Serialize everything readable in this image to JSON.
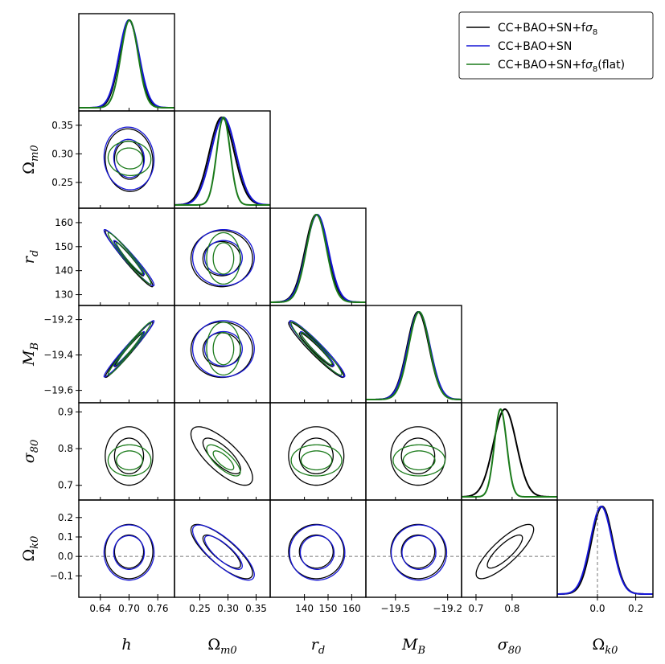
{
  "chart_data": {
    "type": "triangle_corner",
    "parameters": [
      {
        "key": "h",
        "label": "h",
        "sub": "",
        "range": [
          0.595,
          0.795
        ],
        "ticks": [
          0.64,
          0.7,
          0.76
        ],
        "tick_labels": [
          "0.64",
          "0.70",
          "0.76"
        ]
      },
      {
        "key": "om",
        "label": "Ω",
        "sub": "m0",
        "range": [
          0.205,
          0.375
        ],
        "ticks": [
          0.25,
          0.3,
          0.35
        ],
        "tick_labels": [
          "0.25",
          "0.30",
          "0.35"
        ]
      },
      {
        "key": "rd",
        "label": "r",
        "sub": "d",
        "range": [
          125.5,
          166
        ],
        "ticks": [
          130,
          140,
          150,
          160
        ],
        "tick_labels": [
          "130",
          "140",
          "150",
          "160"
        ],
        "x_tick_labels": [
          "140",
          "150",
          "160"
        ],
        "x_ticks": [
          140,
          150,
          160
        ]
      },
      {
        "key": "mb",
        "label": "M",
        "sub": "B",
        "range": [
          -19.67,
          -19.12
        ],
        "ticks": [
          -19.6,
          -19.4,
          -19.2
        ],
        "tick_labels": [
          "−19.6",
          "−19.4",
          "−19.2"
        ],
        "x_ticks": [
          -19.5,
          -19.2
        ],
        "x_tick_labels": [
          "−19.5",
          "−19.2"
        ]
      },
      {
        "key": "s8",
        "label": "σ",
        "sub": "80",
        "range": [
          0.66,
          0.925
        ],
        "ticks": [
          0.7,
          0.8,
          0.9
        ],
        "tick_labels": [
          "0.7",
          "0.8",
          "0.9"
        ],
        "x_ticks": [
          0.7,
          0.8
        ],
        "x_tick_labels": [
          "0.7",
          "0.8"
        ]
      },
      {
        "key": "ok",
        "label": "Ω",
        "sub": "k0",
        "range": [
          -0.21,
          0.29
        ],
        "ticks": [
          -0.1,
          0.0,
          0.1,
          0.2
        ],
        "tick_labels": [
          "−0.1",
          "0.0",
          "0.1",
          "0.2"
        ],
        "x_ticks": [
          0.0,
          0.2
        ],
        "x_tick_labels": [
          "0.0",
          "0.2"
        ]
      }
    ],
    "series": [
      {
        "name": "CC+BAO+SN+fσ8",
        "label_main": "CC+BAO+SN+f",
        "label_sigma": "σ",
        "label_sub": "8",
        "label_suffix": "",
        "color": "#000000",
        "mean": {
          "h": 0.7,
          "om": 0.289,
          "rd": 145.0,
          "mb": -19.37,
          "s8": 0.78,
          "ok": 0.025
        },
        "sigma": {
          "h": 0.02,
          "om": 0.022,
          "rd": 4.7,
          "mb": 0.063,
          "s8": 0.032,
          "ok": 0.056
        }
      },
      {
        "name": "CC+BAO+SN",
        "label_main": "CC+BAO+SN",
        "label_sigma": "",
        "label_sub": "",
        "label_suffix": "",
        "color": "#1515d6",
        "mean": {
          "h": 0.7,
          "om": 0.292,
          "rd": 145.4,
          "mb": -19.365,
          "ok": 0.02
        },
        "sigma": {
          "h": 0.021,
          "om": 0.022,
          "rd": 4.7,
          "mb": 0.064,
          "ok": 0.057
        }
      },
      {
        "name": "CC+BAO+SN+fσ8(flat)",
        "label_main": "CC+BAO+SN+f",
        "label_sigma": "σ",
        "label_sub": "8",
        "label_suffix": "(flat)",
        "color": "#1a7a1a",
        "mean": {
          "h": 0.701,
          "om": 0.292,
          "rd": 145.1,
          "mb": -19.364,
          "s8": 0.768
        },
        "sigma": {
          "h": 0.018,
          "om": 0.012,
          "rd": 4.3,
          "mb": 0.06,
          "s8": 0.017
        }
      }
    ],
    "correlations": {
      "h|om": -0.05,
      "h|rd": -0.97,
      "h|mb": 0.98,
      "h|s8": 0.0,
      "h|ok": 0.0,
      "om|rd": 0.0,
      "om|mb": 0.0,
      "om|s8": -0.75,
      "om|ok": -0.8,
      "rd|mb": -0.96,
      "rd|s8": 0.0,
      "rd|ok": 0.0,
      "mb|s8": 0.0,
      "mb|ok": 0.0,
      "s8|ok": 0.82
    },
    "reference_lines": {
      "ok": 0.0
    },
    "legend_position": "top-right",
    "contour_levels": [
      "68%",
      "95%"
    ]
  }
}
